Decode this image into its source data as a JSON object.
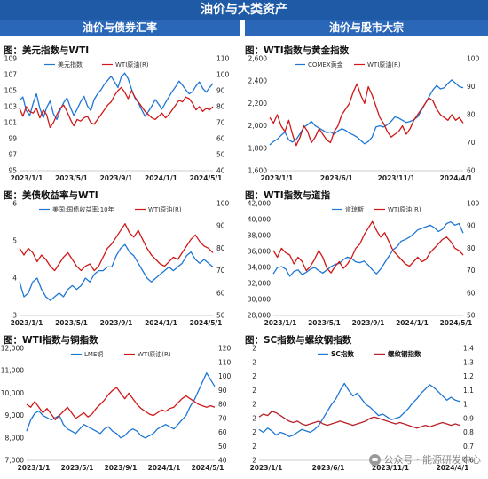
{
  "banner": {
    "title": "油价与大类资产"
  },
  "sections": {
    "left": "油价与债券汇率",
    "right": "油价与股市大宗"
  },
  "watermark": {
    "text": "公众号 · 能源研发中心"
  },
  "charts": [
    {
      "id": "usd",
      "title": "图：美元指数与WTI",
      "legend_style": "small",
      "x_labels": [
        "2023/1/1",
        "2023/5/1",
        "2023/9/1",
        "2024/1/1",
        "2024/5/1"
      ],
      "left_axis": {
        "ticks": [
          "109",
          "107",
          "105",
          "103",
          "101",
          "99",
          "97",
          "95"
        ],
        "min": 95,
        "max": 109
      },
      "right_axis": {
        "ticks": [
          "110",
          "100",
          "90",
          "80",
          "70",
          "60",
          "50",
          "40"
        ],
        "min": 40,
        "max": 110
      },
      "series": [
        {
          "name": "美元指数",
          "color": "#1f77d4",
          "axis": "left",
          "values": [
            103.8,
            104.2,
            102.5,
            101.9,
            103.4,
            104.6,
            102.8,
            101.6,
            102.9,
            103.7,
            102.1,
            101.4,
            102.6,
            103.5,
            104.1,
            102.9,
            101.9,
            102.7,
            103.6,
            104.3,
            103.1,
            102.5,
            103.9,
            104.6,
            105.1,
            105.8,
            106.3,
            106.8,
            106.1,
            105.4,
            106.7,
            107.2,
            106.5,
            105.2,
            104.1,
            103.5,
            102.6,
            101.8,
            102.4,
            103.1,
            103.9,
            103.3,
            102.7,
            103.5,
            104.2,
            104.9,
            105.5,
            106.2,
            105.7,
            105.1,
            104.6,
            104.9,
            105.6,
            106.1,
            105.3,
            104.8,
            105.4,
            105.9
          ]
        },
        {
          "name": "WTI原油(R)",
          "color": "#d01818",
          "axis": "right",
          "values": [
            79,
            74,
            80,
            77,
            76,
            79,
            73,
            78,
            75,
            67,
            70,
            75,
            79,
            81,
            77,
            72,
            68,
            72,
            71,
            73,
            74,
            70,
            69,
            72,
            75,
            78,
            81,
            83,
            87,
            90,
            92,
            89,
            85,
            90,
            86,
            83,
            80,
            77,
            75,
            73,
            72,
            74,
            76,
            73,
            75,
            78,
            81,
            84,
            83,
            86,
            85,
            82,
            78,
            80,
            77,
            79,
            78,
            80
          ]
        }
      ]
    },
    {
      "id": "gold",
      "title": "图：WTI指数与黄金指数",
      "legend_style": "small",
      "x_labels": [
        "2023/1/1",
        "2023/6/1",
        "2023/11/1",
        "2024/4/1"
      ],
      "left_axis": {
        "ticks": [
          "2,600",
          "2,400",
          "2,200",
          "2,000",
          "1,800",
          "1,600"
        ],
        "min": 1600,
        "max": 2600
      },
      "right_axis": {
        "ticks": [
          "100",
          "90",
          "80",
          "70",
          "60"
        ],
        "min": 60,
        "max": 100
      },
      "series": [
        {
          "name": "COMEX黄金",
          "color": "#1f77d4",
          "axis": "left",
          "values": [
            1830,
            1860,
            1880,
            1915,
            1945,
            1875,
            1855,
            1880,
            1930,
            1990,
            2010,
            2040,
            2000,
            1980,
            1960,
            1940,
            1945,
            1925,
            1955,
            1975,
            1960,
            1935,
            1920,
            1900,
            1870,
            1840,
            1860,
            1900,
            1990,
            2000,
            1990,
            2010,
            2040,
            2080,
            2070,
            2050,
            2030,
            2040,
            2055,
            2080,
            2140,
            2200,
            2260,
            2320,
            2360,
            2330,
            2340,
            2380,
            2410,
            2380,
            2350,
            2340
          ]
        },
        {
          "name": "WTI原油(R)",
          "color": "#d01818",
          "axis": "right",
          "values": [
            79,
            77,
            80,
            76,
            74,
            78,
            73,
            69,
            72,
            76,
            74,
            70,
            72,
            75,
            73,
            71,
            70,
            74,
            76,
            80,
            82,
            84,
            88,
            91,
            87,
            84,
            90,
            87,
            83,
            79,
            77,
            74,
            72,
            73,
            74,
            76,
            73,
            75,
            78,
            80,
            82,
            84,
            86,
            85,
            82,
            80,
            79,
            78,
            80,
            78,
            79,
            77
          ]
        }
      ]
    },
    {
      "id": "ust",
      "title": "图：美债收益率与WTI",
      "legend_style": "small",
      "x_labels": [
        "2023/1/1",
        "2023/5/1",
        "2023/9/1",
        "2024/1/1",
        "2024/5/1"
      ],
      "left_axis": {
        "ticks": [
          "6",
          "5",
          "4",
          "3"
        ],
        "min": 3,
        "max": 6
      },
      "right_axis": {
        "ticks": [
          "100",
          "90",
          "80",
          "70",
          "60",
          "50"
        ],
        "min": 50,
        "max": 100
      },
      "series": [
        {
          "name": "美国:国债收益率:10年",
          "color": "#1f77d4",
          "axis": "left",
          "values": [
            3.9,
            3.5,
            3.6,
            3.9,
            4.0,
            3.7,
            3.5,
            3.4,
            3.5,
            3.6,
            3.5,
            3.7,
            3.8,
            3.7,
            3.8,
            4.0,
            3.9,
            4.1,
            4.2,
            4.2,
            4.3,
            4.3,
            4.6,
            4.8,
            4.9,
            4.7,
            4.6,
            4.4,
            4.2,
            4.0,
            3.9,
            4.0,
            4.1,
            4.2,
            4.3,
            4.2,
            4.3,
            4.4,
            4.6,
            4.7,
            4.5,
            4.4,
            4.5,
            4.4,
            4.3
          ]
        },
        {
          "name": "WTI原油(R)",
          "color": "#d01818",
          "axis": "right",
          "values": [
            80,
            77,
            80,
            78,
            74,
            77,
            75,
            72,
            70,
            73,
            76,
            78,
            75,
            72,
            70,
            72,
            73,
            70,
            72,
            76,
            80,
            82,
            85,
            88,
            91,
            87,
            85,
            88,
            84,
            80,
            77,
            75,
            73,
            72,
            74,
            76,
            75,
            78,
            81,
            84,
            86,
            83,
            81,
            80,
            78
          ]
        }
      ]
    },
    {
      "id": "dji",
      "title": "图：WTI指数与道指",
      "legend_style": "small",
      "x_labels": [
        "2023/1/1",
        "2023/5/1",
        "2023/9/1",
        "2024/1/1",
        "2024/5/1"
      ],
      "left_axis": {
        "ticks": [
          "42,000",
          "40,000",
          "38,000",
          "36,000",
          "34,000",
          "32,000",
          "30,000",
          "28,000"
        ],
        "min": 28000,
        "max": 42000
      },
      "right_axis": {
        "ticks": [
          "100",
          "90",
          "80",
          "70",
          "60",
          "50"
        ],
        "min": 50,
        "max": 100
      },
      "series": [
        {
          "name": "道琼斯",
          "color": "#1f77d4",
          "axis": "left",
          "values": [
            33200,
            34000,
            34100,
            33800,
            32900,
            33500,
            33700,
            33100,
            33400,
            33800,
            34000,
            33600,
            33300,
            33700,
            34100,
            34400,
            34500,
            35000,
            35300,
            35100,
            34700,
            34600,
            34800,
            34300,
            33700,
            33200,
            33800,
            34600,
            35400,
            36200,
            36600,
            37300,
            37500,
            37800,
            38200,
            38700,
            38900,
            39100,
            39300,
            39000,
            38500,
            38800,
            39500,
            39700,
            39300,
            39500,
            38300
          ]
        },
        {
          "name": "WTI原油(R)",
          "color": "#d01818",
          "axis": "right",
          "values": [
            79,
            76,
            80,
            78,
            77,
            73,
            76,
            74,
            70,
            72,
            75,
            79,
            76,
            71,
            69,
            72,
            74,
            71,
            73,
            76,
            80,
            82,
            86,
            89,
            92,
            88,
            85,
            87,
            83,
            79,
            77,
            75,
            73,
            72,
            74,
            76,
            74,
            75,
            78,
            80,
            82,
            84,
            85,
            83,
            80,
            79,
            77
          ]
        }
      ]
    },
    {
      "id": "copper",
      "title": "图：WTI指数与铜指数",
      "legend_style": "small",
      "x_labels": [
        "2023/1/1",
        "2023/5/1",
        "2023/9/1",
        "2024/1/1",
        "2024/5/1"
      ],
      "left_axis": {
        "ticks": [
          "12,000",
          "11,000",
          "10,000",
          "9,000",
          "8,000",
          "7,000"
        ],
        "min": 7000,
        "max": 12000
      },
      "right_axis": {
        "ticks": [
          "120",
          "110",
          "100",
          "90",
          "80",
          "70",
          "60",
          "50",
          "40"
        ],
        "min": 40,
        "max": 120
      },
      "series": [
        {
          "name": "LME铜",
          "color": "#1f77d4",
          "axis": "left",
          "values": [
            8300,
            8800,
            9100,
            9200,
            9000,
            8900,
            8800,
            8900,
            9000,
            8600,
            8400,
            8300,
            8200,
            8400,
            8600,
            8500,
            8400,
            8300,
            8200,
            8400,
            8500,
            8300,
            8200,
            8000,
            8100,
            8300,
            8400,
            8300,
            8100,
            8000,
            8100,
            8200,
            8400,
            8500,
            8600,
            8500,
            8400,
            8600,
            8800,
            9000,
            9400,
            9700,
            10100,
            10500,
            10900,
            10600,
            10300
          ]
        },
        {
          "name": "WTI原油(R)",
          "color": "#d01818",
          "axis": "right",
          "values": [
            80,
            78,
            82,
            78,
            74,
            77,
            73,
            69,
            72,
            75,
            78,
            74,
            70,
            72,
            74,
            71,
            73,
            77,
            80,
            83,
            87,
            90,
            92,
            88,
            84,
            88,
            84,
            80,
            77,
            75,
            73,
            72,
            74,
            76,
            75,
            77,
            78,
            81,
            84,
            86,
            84,
            82,
            80,
            79,
            78,
            79,
            78
          ]
        }
      ]
    },
    {
      "id": "sc",
      "title": "图：SC指数与螺纹钢指数",
      "legend_style": "bold",
      "x_labels": [
        "2023/1/1",
        "2023/6/1",
        "2023/11/1",
        "2024/4/1"
      ],
      "left_axis": {
        "ticks": [
          "2",
          "2",
          "2",
          "2",
          "2",
          "2",
          "2",
          "2",
          "2"
        ],
        "min": 0,
        "max": 8
      },
      "right_axis": {
        "ticks": [
          "1.4",
          "1.3",
          "1.2",
          "1.1",
          "1",
          "0.9",
          "0.8",
          "0.7",
          "0.6"
        ],
        "min": 0.6,
        "max": 1.4
      },
      "series": [
        {
          "name": "SC指数",
          "color": "#1f77d4",
          "axis": "left",
          "values": [
            2.2,
            2.0,
            2.3,
            2.1,
            1.8,
            2.0,
            1.9,
            1.7,
            1.8,
            2.0,
            2.2,
            2.1,
            2.0,
            2.2,
            2.5,
            3.0,
            3.5,
            4.0,
            4.4,
            5.0,
            5.5,
            5.0,
            4.6,
            4.8,
            4.4,
            4.0,
            3.8,
            3.5,
            3.2,
            3.3,
            3.1,
            2.9,
            3.0,
            3.1,
            3.4,
            3.7,
            4.1,
            4.4,
            4.8,
            5.1,
            5.4,
            5.2,
            4.9,
            4.6,
            4.3,
            4.5,
            4.3,
            4.2
          ]
        },
        {
          "name": "螺纹钢指数",
          "color": "#b8202a",
          "axis": "right",
          "values": [
            0.91,
            0.93,
            0.92,
            0.95,
            0.94,
            0.92,
            0.9,
            0.88,
            0.87,
            0.88,
            0.86,
            0.85,
            0.86,
            0.87,
            0.88,
            0.86,
            0.85,
            0.86,
            0.87,
            0.88,
            0.87,
            0.86,
            0.85,
            0.86,
            0.87,
            0.88,
            0.9,
            0.91,
            0.9,
            0.89,
            0.88,
            0.87,
            0.86,
            0.87,
            0.86,
            0.85,
            0.84,
            0.83,
            0.84,
            0.85,
            0.84,
            0.85,
            0.86,
            0.87,
            0.86,
            0.85,
            0.86,
            0.85
          ]
        }
      ]
    }
  ]
}
